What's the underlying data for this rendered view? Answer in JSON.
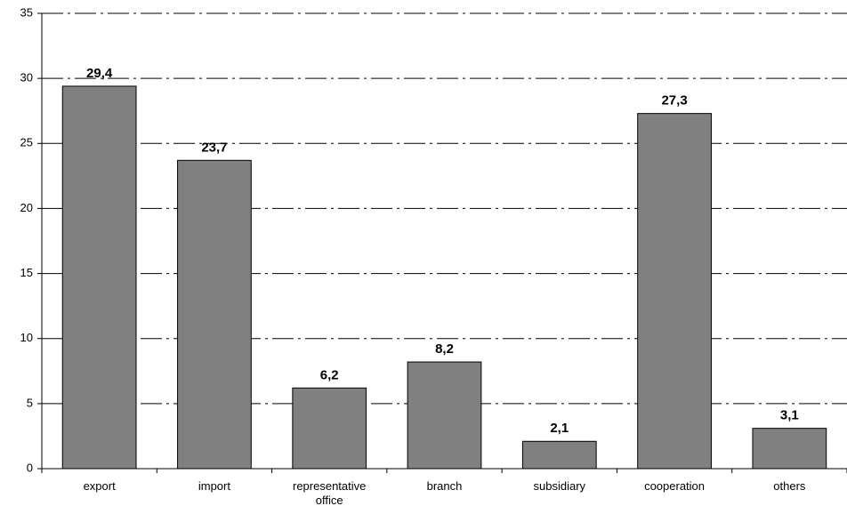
{
  "chart_data": {
    "type": "bar",
    "categories": [
      "export",
      "import",
      "representative office",
      "branch",
      "subsidiary",
      "cooperation",
      "others"
    ],
    "values": [
      29.4,
      23.7,
      6.2,
      8.2,
      2.1,
      27.3,
      3.1
    ],
    "value_labels": [
      "29,4",
      "23,7",
      "6,2",
      "8,2",
      "2,1",
      "27,3",
      "3,1"
    ],
    "color": "#808080",
    "ylim": [
      0,
      35
    ],
    "yticks": [
      0,
      5,
      10,
      15,
      20,
      25,
      30,
      35
    ],
    "grid": true
  }
}
